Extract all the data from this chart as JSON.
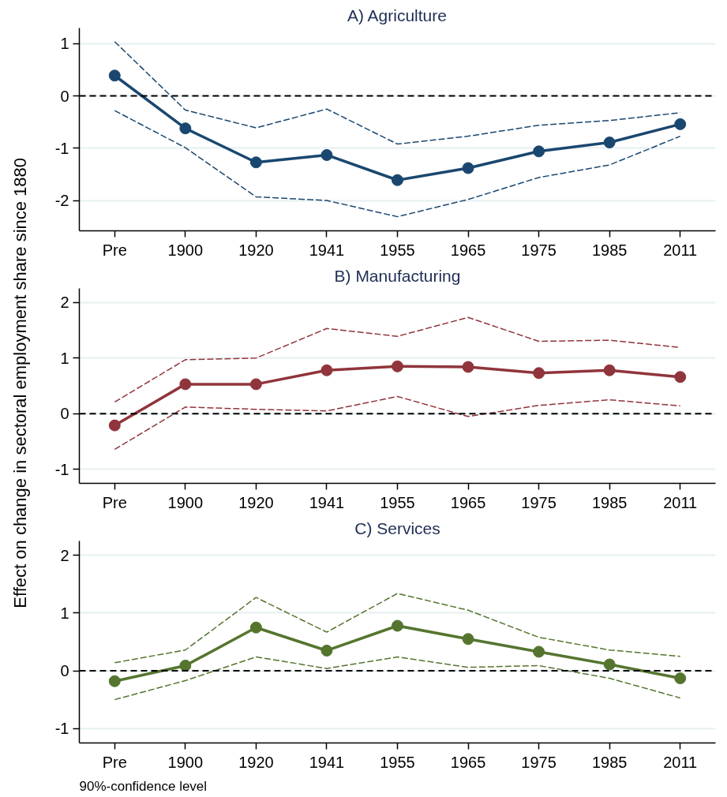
{
  "chart_data": [
    {
      "type": "line",
      "title": "A) Agriculture",
      "categories": [
        "Pre",
        "1900",
        "1920",
        "1941",
        "1955",
        "1965",
        "1975",
        "1985",
        "2011"
      ],
      "series": [
        {
          "color": "#1a476f",
          "values": [
            0.39,
            -0.62,
            -1.27,
            -1.13,
            -1.61,
            -1.38,
            -1.06,
            -0.89,
            -0.54
          ],
          "marker": "circle",
          "line_style": "solid"
        },
        {
          "color": "#1a476f",
          "values": [
            -0.28,
            -0.99,
            -1.93,
            -2.0,
            -2.31,
            -1.98,
            -1.56,
            -1.32,
            -0.77
          ],
          "marker": "none",
          "line_style": "dashed"
        },
        {
          "color": "#1a476f",
          "values": [
            1.04,
            -0.27,
            -0.61,
            -0.25,
            -0.92,
            -0.77,
            -0.56,
            -0.47,
            -0.32
          ],
          "marker": "none",
          "line_style": "dashed"
        }
      ],
      "ylim": [
        -2.58,
        1.3
      ],
      "yticks": [
        -2,
        -1,
        0,
        1
      ],
      "grid": "y",
      "ref_lines": [
        {
          "axis": "y",
          "value": 0,
          "color": "#000000",
          "line_style": "dashed"
        }
      ]
    },
    {
      "type": "line",
      "title": "B) Manufacturing",
      "ylabel": "Effect on change in sectoral employment share since 1880",
      "categories": [
        "Pre",
        "1900",
        "1920",
        "1941",
        "1955",
        "1965",
        "1975",
        "1985",
        "2011"
      ],
      "series": [
        {
          "color": "#90353b",
          "values": [
            -0.21,
            0.53,
            0.53,
            0.78,
            0.85,
            0.84,
            0.73,
            0.78,
            0.66
          ],
          "marker": "circle",
          "line_style": "solid"
        },
        {
          "color": "#90353b",
          "values": [
            -0.64,
            0.12,
            0.08,
            0.05,
            0.31,
            -0.05,
            0.15,
            0.25,
            0.14
          ],
          "marker": "none",
          "line_style": "dashed"
        },
        {
          "color": "#90353b",
          "values": [
            0.21,
            0.97,
            1.0,
            1.53,
            1.39,
            1.73,
            1.3,
            1.32,
            1.19
          ],
          "marker": "none",
          "line_style": "dashed"
        }
      ],
      "ylim": [
        -1.25,
        2.25
      ],
      "yticks": [
        -1,
        0,
        1,
        2
      ],
      "grid": "y",
      "ref_lines": [
        {
          "axis": "y",
          "value": 0,
          "color": "#000000",
          "line_style": "dashed"
        }
      ]
    },
    {
      "type": "line",
      "title": "C) Services",
      "categories": [
        "Pre",
        "1900",
        "1920",
        "1941",
        "1955",
        "1965",
        "1975",
        "1985",
        "2011"
      ],
      "series": [
        {
          "color": "#55752f",
          "values": [
            -0.18,
            0.09,
            0.75,
            0.35,
            0.78,
            0.55,
            0.33,
            0.11,
            -0.13
          ],
          "marker": "circle",
          "line_style": "solid"
        },
        {
          "color": "#55752f",
          "values": [
            -0.5,
            -0.17,
            0.24,
            0.04,
            0.24,
            0.06,
            0.09,
            -0.13,
            -0.47
          ],
          "marker": "none",
          "line_style": "dashed"
        },
        {
          "color": "#55752f",
          "values": [
            0.14,
            0.36,
            1.27,
            0.67,
            1.34,
            1.05,
            0.58,
            0.36,
            0.25
          ],
          "marker": "none",
          "line_style": "dashed"
        }
      ],
      "ylim": [
        -1.25,
        2.25
      ],
      "yticks": [
        -1,
        0,
        1,
        2
      ],
      "grid": "y",
      "ref_lines": [
        {
          "axis": "y",
          "value": 0,
          "color": "#000000",
          "line_style": "dashed"
        }
      ],
      "annotations": [
        "90%-confidence level"
      ]
    }
  ]
}
